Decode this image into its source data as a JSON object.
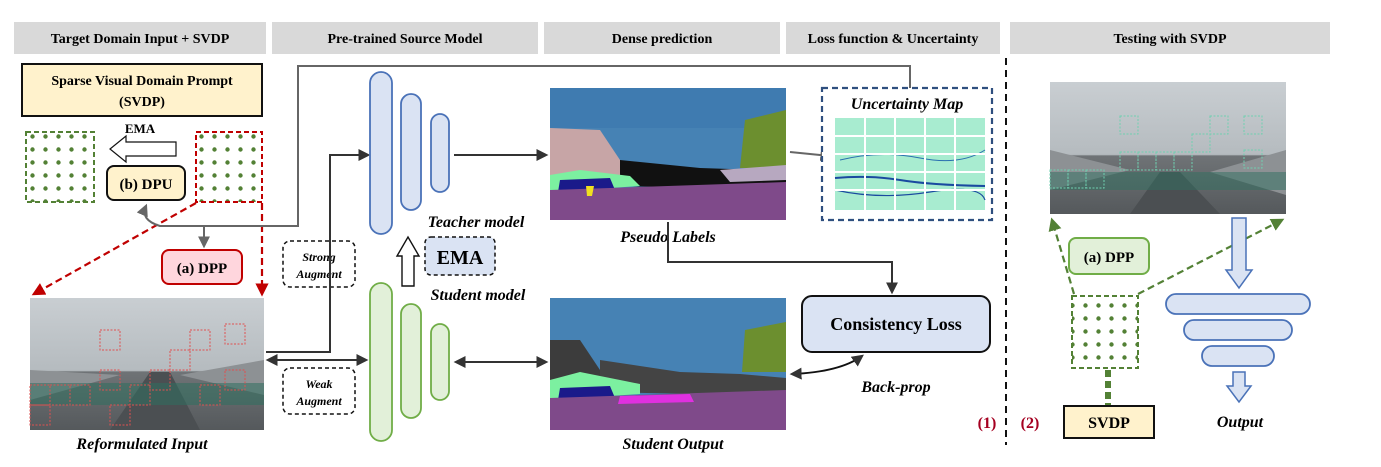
{
  "headers": {
    "target": "Target Domain Input + SVDP",
    "source": "Pre-trained Source Model",
    "dense": "Dense prediction",
    "loss": "Loss function & Uncertainty",
    "testing": "Testing with SVDP"
  },
  "svdp_box": {
    "line1": "Sparse Visual Domain Prompt",
    "line2": "(SVDP)"
  },
  "labels": {
    "ema_small": "EMA",
    "dpu": "(b) DPU",
    "dpp_left": "(a) DPP",
    "dpp_right": "(a) DPP",
    "strong1": "Strong",
    "strong2": "Augment",
    "weak1": "Weak",
    "weak2": "Augment",
    "ema_big": "EMA",
    "teacher": "Teacher model",
    "student": "Student model",
    "pseudo": "Pseudo  Labels",
    "student_output": "Student Output",
    "uncertainty": "Uncertainty Map",
    "consistency": "Consistency Loss",
    "backprop": "Back-prop",
    "reformulated": "Reformulated Input",
    "mark1": "(1)",
    "mark2": "(2)",
    "svdp": "SVDP",
    "output": "Output"
  },
  "colors": {
    "header_bg": "#d9d9d9",
    "green_dots": "#538135",
    "red_dash": "#c00000",
    "blue_box": "#dae3f3",
    "blue_stroke": "#4a72b8",
    "green_box": "#e2f0d9",
    "green_stroke": "#70ad47",
    "pink_box": "#ffd6dd",
    "cream_box": "#fff2cc",
    "sky": "#4682b4",
    "road": "#7f4a8a",
    "mark_red": "#a50021"
  }
}
